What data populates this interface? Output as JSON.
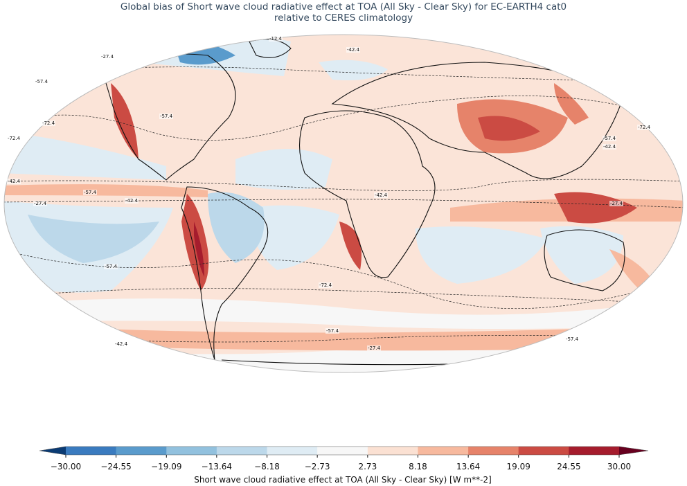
{
  "map": {
    "title": [
      "Global bias of Short wave cloud radiative effect at TOA (All Sky - Clear Sky) for EC-EARTH4 cat0",
      "relative to CERES climatology"
    ],
    "contour_labels": [
      "-12.4",
      "-27.4",
      "-42.4",
      "-57.4",
      "-57.4",
      "-72.4",
      "-42.4",
      "-27.4",
      "-72.4",
      "-57.4",
      "-42.4",
      "-72.4",
      "-57.4",
      "-42.4",
      "-27.4",
      "-72.4",
      "-57.4",
      "-42.4",
      "-27.4",
      "-57.4",
      "-42.4",
      "-57.4"
    ],
    "colorbar": {
      "label": "Short wave cloud radiative effect at TOA (All Sky - Clear Sky) [W m**-2]",
      "ticks": [
        {
          "value": -30,
          "label": "−30.00"
        },
        {
          "value": -24.55,
          "label": "−24.55"
        },
        {
          "value": -19.09,
          "label": "−19.09"
        },
        {
          "value": -13.64,
          "label": "−13.64"
        },
        {
          "value": -8.18,
          "label": "−8.18"
        },
        {
          "value": -2.73,
          "label": "−2.73"
        },
        {
          "value": 2.73,
          "label": "2.73"
        },
        {
          "value": 8.18,
          "label": "8.18"
        },
        {
          "value": 13.64,
          "label": "13.64"
        },
        {
          "value": 19.09,
          "label": "19.09"
        },
        {
          "value": 24.55,
          "label": "24.55"
        },
        {
          "value": 30,
          "label": "30.00"
        }
      ],
      "colors": [
        "#3a7bbf",
        "#5a9bcc",
        "#92c1de",
        "#bcd8ea",
        "#dfecf4",
        "#f7f7f7",
        "#fbe1d3",
        "#f7b99e",
        "#e6836a",
        "#cb4b43",
        "#a51c2d"
      ],
      "extend_colors": [
        "#0b3b73",
        "#67001f"
      ]
    }
  }
}
